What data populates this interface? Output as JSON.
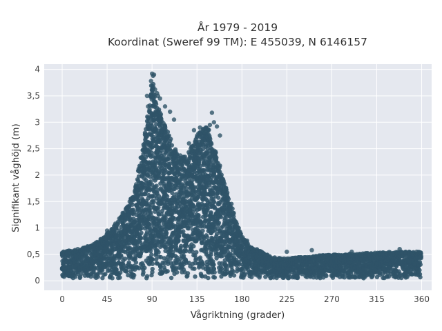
{
  "chart_data": {
    "type": "scatter",
    "title_line1": "År 1979 - 2019",
    "title_line2": "Koordinat (Sweref 99 TM): E 455039, N 6146157",
    "xlabel": "Vågriktning (grader)",
    "ylabel": "Signifikant våghöjd (m)",
    "xlim": [
      -18,
      370
    ],
    "ylim": [
      -0.18,
      4.1
    ],
    "xticks": [
      0,
      45,
      90,
      135,
      180,
      225,
      270,
      315,
      360
    ],
    "xtick_labels": [
      "0",
      "45",
      "90",
      "135",
      "180",
      "225",
      "270",
      "315",
      "360"
    ],
    "yticks": [
      0,
      0.5,
      1,
      1.5,
      2,
      2.5,
      3,
      3.5,
      4
    ],
    "ytick_labels": [
      "0",
      "0,5",
      "1",
      "1,5",
      "2",
      "2,5",
      "3",
      "3,5",
      "4"
    ],
    "grid": true,
    "colors": {
      "marker": "#2f5468",
      "plot_bg": "#e5e8ef",
      "grid": "#ffffff"
    },
    "upper_envelope": {
      "x": [
        0,
        10,
        20,
        30,
        40,
        50,
        60,
        70,
        75,
        80,
        85,
        88,
        90,
        92,
        95,
        100,
        105,
        110,
        115,
        120,
        125,
        130,
        135,
        140,
        145,
        150,
        155,
        160,
        165,
        170,
        175,
        180,
        190,
        200,
        210,
        225,
        240,
        270,
        300,
        330,
        360
      ],
      "y": [
        0.55,
        0.58,
        0.62,
        0.68,
        0.8,
        1.0,
        1.25,
        1.6,
        1.95,
        2.45,
        3.0,
        3.45,
        3.85,
        3.6,
        3.4,
        3.1,
        2.85,
        2.6,
        2.45,
        2.35,
        2.4,
        2.55,
        2.75,
        2.9,
        2.95,
        2.7,
        2.35,
        2.0,
        1.7,
        1.4,
        1.1,
        0.85,
        0.65,
        0.55,
        0.45,
        0.42,
        0.45,
        0.5,
        0.52,
        0.55,
        0.55
      ]
    },
    "outliers": [
      [
        90,
        3.92
      ],
      [
        91,
        3.88
      ],
      [
        92,
        3.9
      ],
      [
        89,
        3.78
      ],
      [
        93,
        3.62
      ],
      [
        95,
        3.55
      ],
      [
        98,
        3.45
      ],
      [
        103,
        3.3
      ],
      [
        108,
        3.2
      ],
      [
        112,
        3.05
      ],
      [
        150,
        3.18
      ],
      [
        152,
        3.0
      ],
      [
        148,
        2.95
      ],
      [
        155,
        2.92
      ],
      [
        138,
        2.9
      ],
      [
        127,
        2.6
      ],
      [
        132,
        2.85
      ],
      [
        85,
        3.5
      ],
      [
        86,
        3.3
      ],
      [
        96,
        3.5
      ],
      [
        143,
        2.8
      ],
      [
        158,
        2.75
      ],
      [
        45,
        0.95
      ],
      [
        250,
        0.58
      ],
      [
        290,
        0.55
      ],
      [
        338,
        0.6
      ],
      [
        355,
        0.55
      ],
      [
        225,
        0.55
      ]
    ]
  }
}
